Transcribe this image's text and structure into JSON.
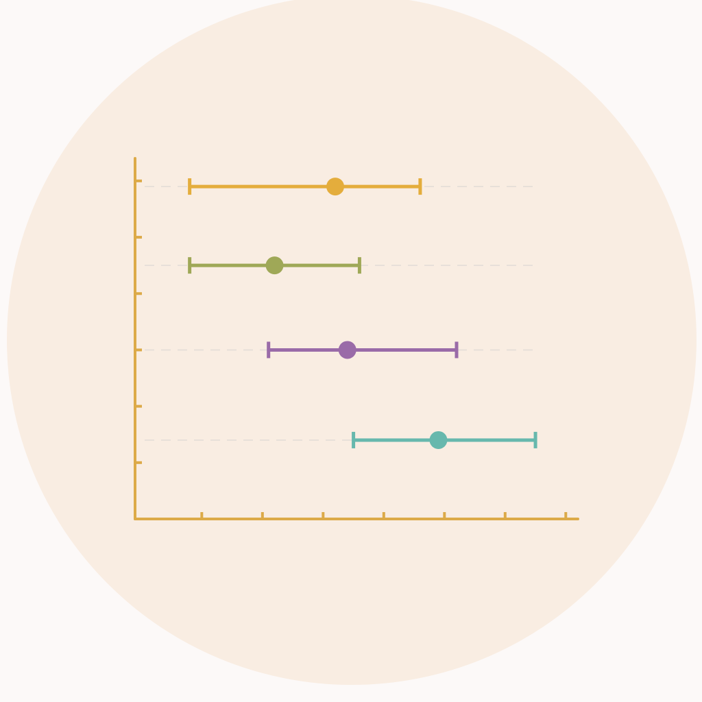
{
  "chart_data": {
    "type": "errorbar",
    "values": [
      3.2,
      2.2,
      3.4,
      4.9
    ],
    "low": [
      0.8,
      0.8,
      2.1,
      3.5
    ],
    "high": [
      4.6,
      3.6,
      5.2,
      6.5
    ],
    "positions": [
      5.9,
      4.5,
      3.0,
      1.4
    ],
    "colors": [
      "#e4ad3c",
      "#9fa857",
      "#9a6ba8",
      "#67b8ad"
    ],
    "axis_color": "#dcaa48",
    "xlim": [
      -0.1,
      7.2
    ],
    "xticks": [
      1,
      2,
      3,
      4,
      5,
      6,
      7
    ],
    "ylim": [
      0,
      6.4
    ],
    "yticks": [
      1,
      2,
      3,
      4,
      5,
      6
    ],
    "grid": true
  }
}
